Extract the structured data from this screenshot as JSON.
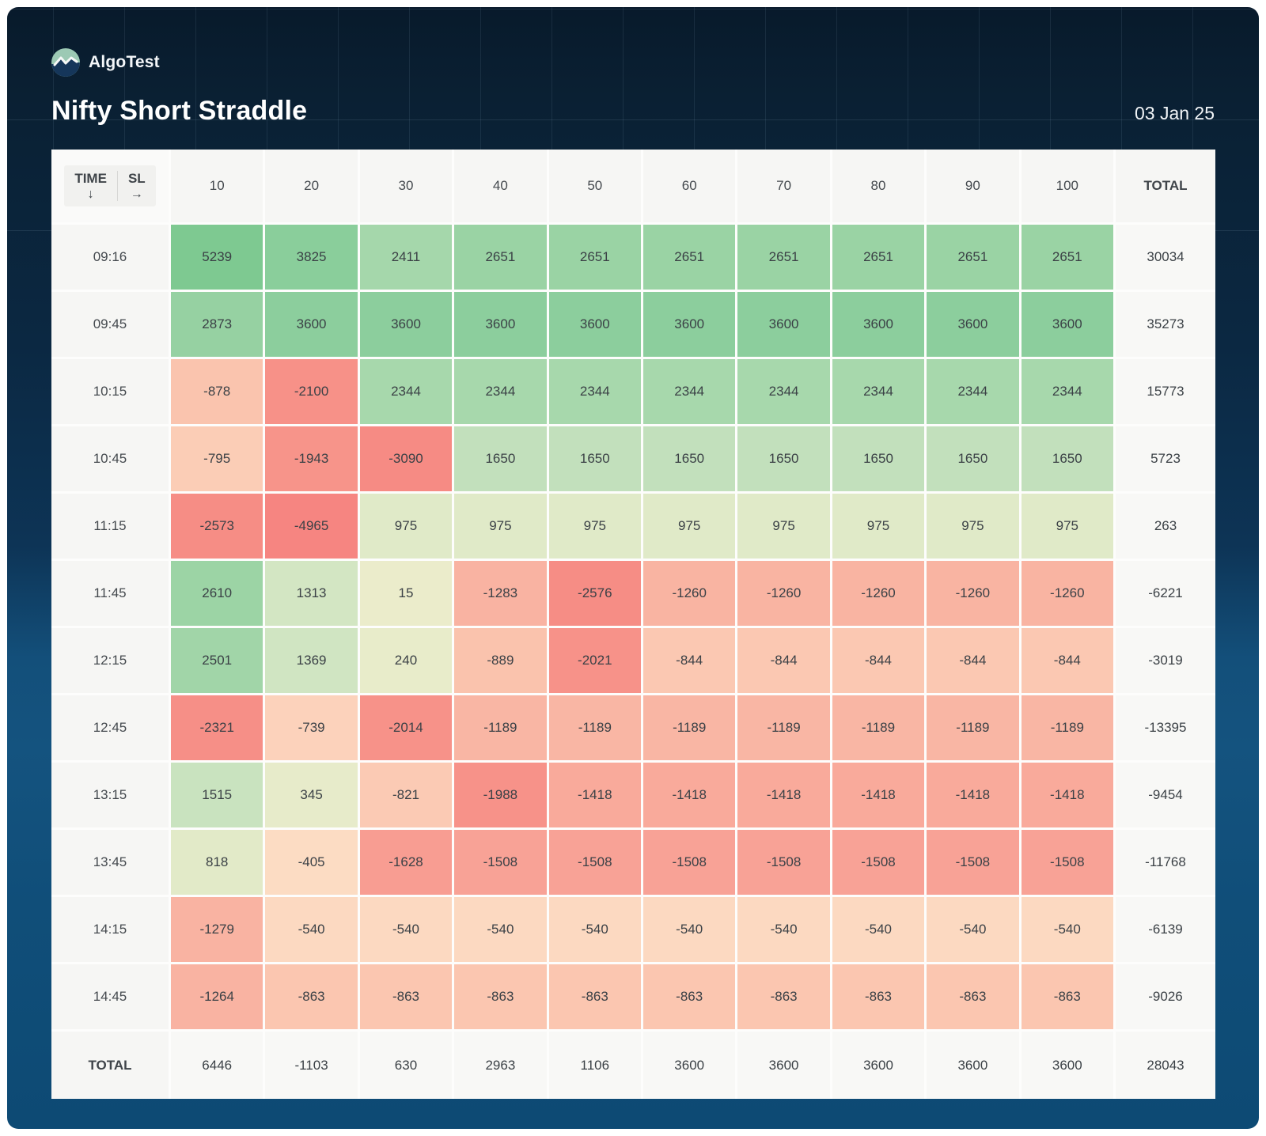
{
  "brand": {
    "name": "AlgoTest"
  },
  "header": {
    "title": "Nifty Short Straddle",
    "date": "03 Jan 25"
  },
  "labels": {
    "time": "TIME",
    "time_arrow": "↓",
    "sl": "SL",
    "sl_arrow": "→",
    "total": "TOTAL"
  },
  "chart_data": {
    "type": "heatmap",
    "title": "Nifty Short Straddle",
    "date": "03 Jan 25",
    "x_axis_label": "SL",
    "y_axis_label": "TIME",
    "columns": [
      "10",
      "20",
      "30",
      "40",
      "50",
      "60",
      "70",
      "80",
      "90",
      "100"
    ],
    "rows": [
      "09:16",
      "09:45",
      "10:15",
      "10:45",
      "11:15",
      "11:45",
      "12:15",
      "12:45",
      "13:15",
      "13:45",
      "14:15",
      "14:45"
    ],
    "values": [
      [
        5239,
        3825,
        2411,
        2651,
        2651,
        2651,
        2651,
        2651,
        2651,
        2651
      ],
      [
        2873,
        3600,
        3600,
        3600,
        3600,
        3600,
        3600,
        3600,
        3600,
        3600
      ],
      [
        -878,
        -2100,
        2344,
        2344,
        2344,
        2344,
        2344,
        2344,
        2344,
        2344
      ],
      [
        -795,
        -1943,
        -3090,
        1650,
        1650,
        1650,
        1650,
        1650,
        1650,
        1650
      ],
      [
        -2573,
        -4965,
        975,
        975,
        975,
        975,
        975,
        975,
        975,
        975
      ],
      [
        2610,
        1313,
        15,
        -1283,
        -2576,
        -1260,
        -1260,
        -1260,
        -1260,
        -1260
      ],
      [
        2501,
        1369,
        240,
        -889,
        -2021,
        -844,
        -844,
        -844,
        -844,
        -844
      ],
      [
        -2321,
        -739,
        -2014,
        -1189,
        -1189,
        -1189,
        -1189,
        -1189,
        -1189,
        -1189
      ],
      [
        1515,
        345,
        -821,
        -1988,
        -1418,
        -1418,
        -1418,
        -1418,
        -1418,
        -1418
      ],
      [
        818,
        -405,
        -1628,
        -1508,
        -1508,
        -1508,
        -1508,
        -1508,
        -1508,
        -1508
      ],
      [
        -1279,
        -540,
        -540,
        -540,
        -540,
        -540,
        -540,
        -540,
        -540,
        -540
      ],
      [
        -1264,
        -863,
        -863,
        -863,
        -863,
        -863,
        -863,
        -863,
        -863,
        -863
      ]
    ],
    "row_totals": [
      30034,
      35273,
      15773,
      5723,
      263,
      -6221,
      -3019,
      -13395,
      -9454,
      -11768,
      -6139,
      -9026
    ],
    "col_totals": [
      6446,
      -1103,
      630,
      2963,
      1106,
      3600,
      3600,
      3600,
      3600,
      3600
    ],
    "grand_total": 28043,
    "legend_position": "none",
    "grid": false
  },
  "heatmap_scale": {
    "stops": [
      {
        "v": -5000,
        "c": "#f68581"
      },
      {
        "v": -2600,
        "c": "#f68d85"
      },
      {
        "v": -2000,
        "c": "#f79289"
      },
      {
        "v": -1700,
        "c": "#f89a8f"
      },
      {
        "v": -1500,
        "c": "#f8a296"
      },
      {
        "v": -1350,
        "c": "#f9b0a0"
      },
      {
        "v": -1200,
        "c": "#f9b6a4"
      },
      {
        "v": -900,
        "c": "#fac2ac"
      },
      {
        "v": -850,
        "c": "#fbc7b1"
      },
      {
        "v": -700,
        "c": "#fcd6be"
      },
      {
        "v": -400,
        "c": "#fcdcc3"
      },
      {
        "v": 0,
        "c": "#ebeccb"
      },
      {
        "v": 500,
        "c": "#e5ebc9"
      },
      {
        "v": 1000,
        "c": "#e0eac8"
      },
      {
        "v": 1400,
        "c": "#cfe5c2"
      },
      {
        "v": 1700,
        "c": "#bfdfbb"
      },
      {
        "v": 2400,
        "c": "#a5d7ab"
      },
      {
        "v": 2700,
        "c": "#98d2a3"
      },
      {
        "v": 3700,
        "c": "#8bce9c"
      },
      {
        "v": 5300,
        "c": "#7ec991"
      }
    ]
  },
  "colors": {
    "card_top": "#0a1f33",
    "card_bottom": "#0d4a74",
    "table_background": "#fdfdfc",
    "header_cell_background": "#f6f6f4",
    "cell_text": "#3c4247",
    "max_green": "#7ec991",
    "max_red": "#f68581",
    "logo_top": "#9cc9b4",
    "logo_bottom": "#15365a"
  }
}
